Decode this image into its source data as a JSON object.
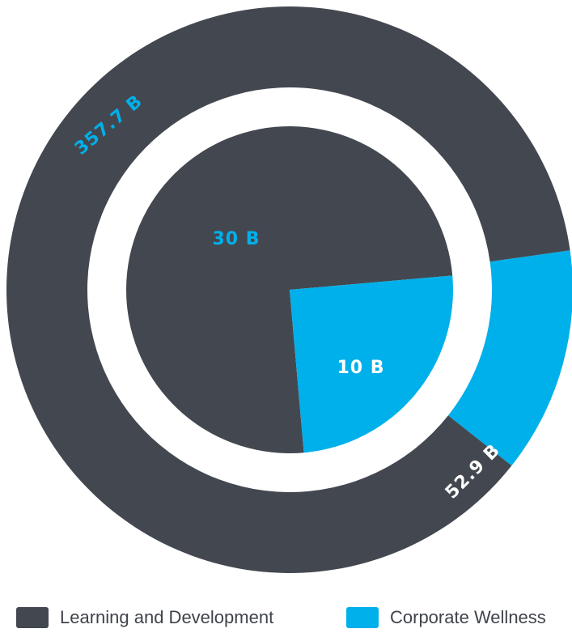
{
  "chart_data": {
    "type": "pie",
    "variant": "nested-donut",
    "colors": {
      "Learning and Development": "#434850",
      "Corporate Wellness": "#00b0ea"
    },
    "legend": {
      "placement": "bottom",
      "entries": [
        {
          "name": "Learning and Development",
          "color": "#434850"
        },
        {
          "name": "Corporate Wellness",
          "color": "#00b0ea"
        }
      ]
    },
    "rings": [
      {
        "ring": "outer",
        "slices": [
          {
            "name": "Learning and Development",
            "value": 357.7,
            "label": "357.7 B"
          },
          {
            "name": "Corporate Wellness",
            "value": 52.9,
            "label": "52.9 B"
          }
        ]
      },
      {
        "ring": "inner",
        "slices": [
          {
            "name": "Learning and Development",
            "value": 30,
            "label": "30 B"
          },
          {
            "name": "Corporate Wellness",
            "value": 10,
            "label": "10 B"
          }
        ]
      }
    ]
  }
}
